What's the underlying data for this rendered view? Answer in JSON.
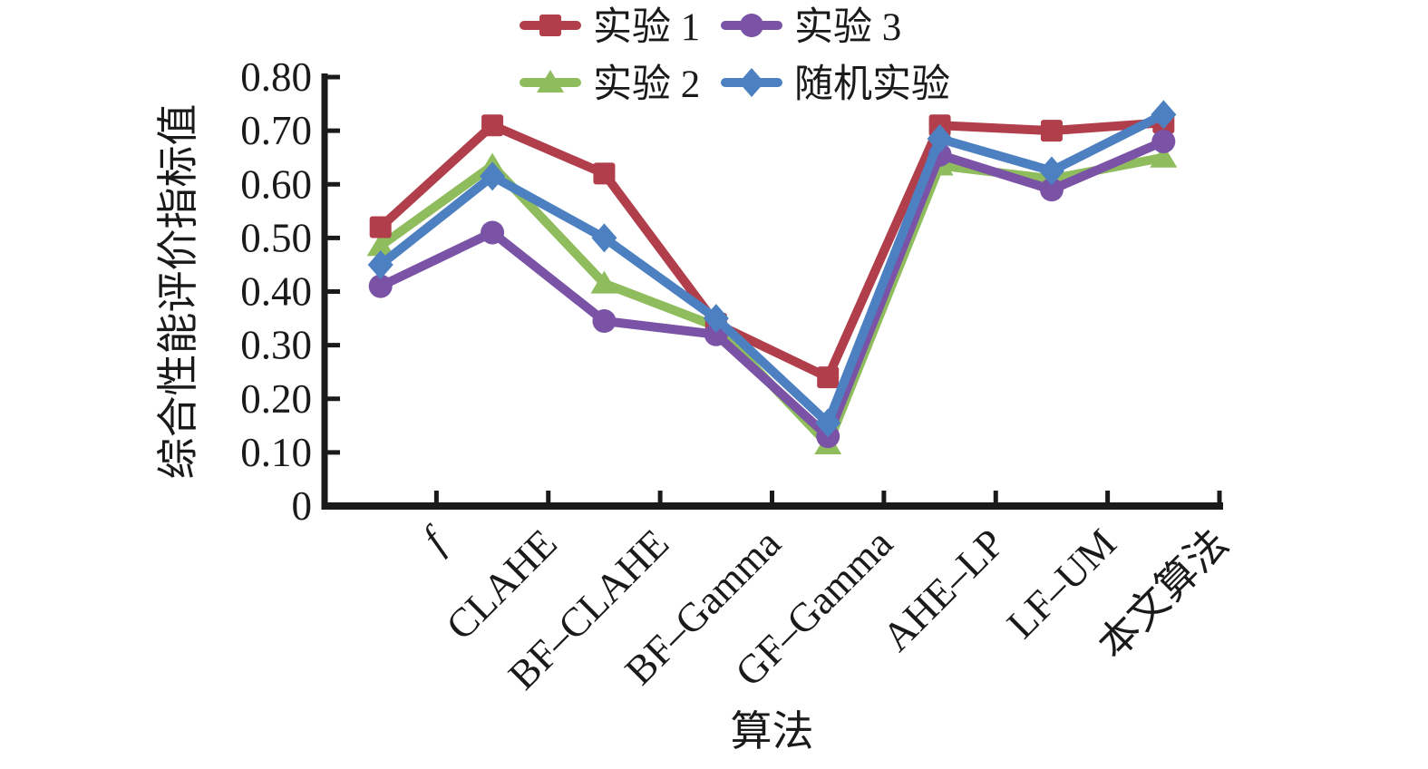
{
  "figure": {
    "background": "#ffffff",
    "text_color": "#1a1a1a"
  },
  "chart_data": {
    "type": "line",
    "title": "",
    "xlabel": "算法",
    "ylabel": "综合性能评价指标值",
    "ylim": [
      0,
      0.8
    ],
    "y_tick_labels": [
      "0",
      "0.10",
      "0.20",
      "0.30",
      "0.40",
      "0.50",
      "0.60",
      "0.70",
      "0.80"
    ],
    "y_tick_values": [
      0,
      0.1,
      0.2,
      0.3,
      0.4,
      0.5,
      0.6,
      0.7,
      0.8
    ],
    "grid": false,
    "legend_position": "top",
    "categories": [
      "f",
      "CLAHE",
      "BF–CLAHE",
      "BF–Gamma",
      "GF–Gamma",
      "AHE–LP",
      "LF–UM",
      "本文算法"
    ],
    "series": [
      {
        "name": "实验 1",
        "marker": "square",
        "color": "#b13f4b",
        "values": [
          0.52,
          0.71,
          0.62,
          0.34,
          0.24,
          0.71,
          0.7,
          0.715
        ]
      },
      {
        "name": "实验 2",
        "marker": "triangle",
        "color": "#8fbc5c",
        "values": [
          0.485,
          0.635,
          0.415,
          0.335,
          0.115,
          0.635,
          0.61,
          0.65
        ]
      },
      {
        "name": "实验 3",
        "marker": "circle",
        "color": "#7a53a6",
        "values": [
          0.41,
          0.51,
          0.345,
          0.32,
          0.13,
          0.655,
          0.59,
          0.68
        ]
      },
      {
        "name": "随机实验",
        "marker": "diamond",
        "color": "#4c80c1",
        "values": [
          0.45,
          0.615,
          0.5,
          0.35,
          0.155,
          0.685,
          0.625,
          0.73
        ]
      }
    ]
  }
}
